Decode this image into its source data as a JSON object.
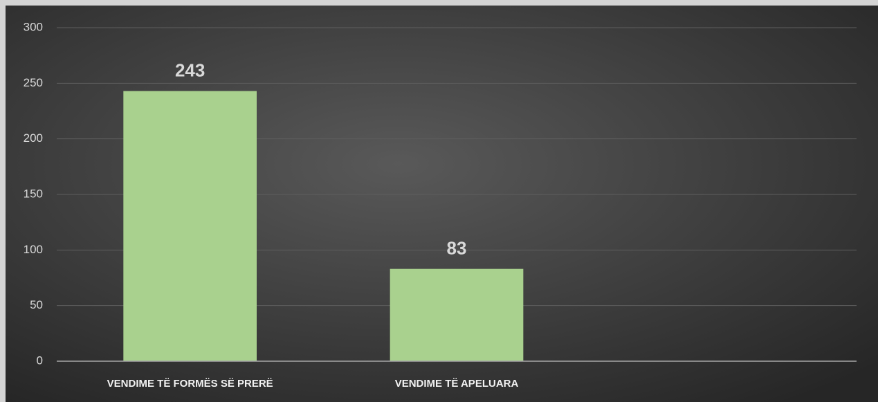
{
  "chart_data": {
    "type": "bar",
    "categories": [
      "VENDIME TË FORMËS SË PRERË",
      "VENDIME TË APELUARA",
      null
    ],
    "values": [
      243,
      83,
      null
    ],
    "color": "#a9d18e",
    "ylim": [
      0,
      300
    ],
    "yticks": [
      0,
      50,
      100,
      150,
      200,
      250,
      300
    ],
    "grid": true
  }
}
